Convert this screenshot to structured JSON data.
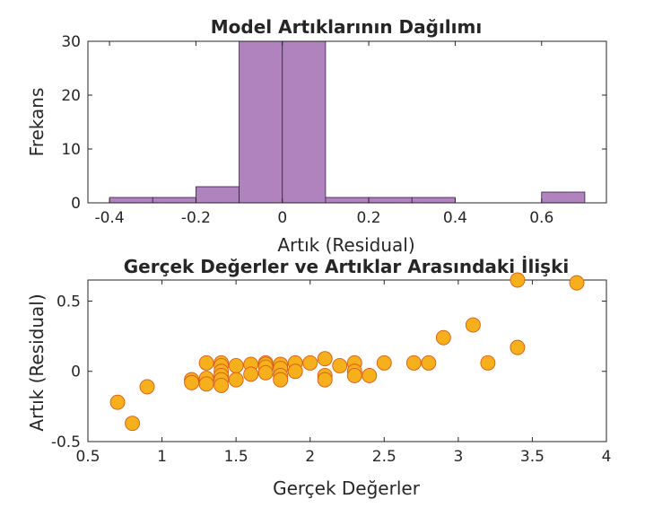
{
  "chart_data": [
    {
      "type": "bar",
      "title": "Model Artıklarının Dağılımı",
      "xlabel": "Artık (Residual)",
      "ylabel": "Frekans",
      "xlim": [
        -0.45,
        0.75
      ],
      "ylim": [
        0,
        30
      ],
      "xticks": [
        "-0.4",
        "-0.2",
        "0",
        "0.2",
        "0.4",
        "0.6"
      ],
      "xtick_values": [
        -0.4,
        -0.2,
        0,
        0.2,
        0.4,
        0.6
      ],
      "yticks": [
        "0",
        "10",
        "20",
        "30"
      ],
      "ytick_values": [
        0,
        10,
        20,
        30
      ],
      "bin_edges": [
        -0.4,
        -0.3,
        -0.2,
        -0.1,
        0.0,
        0.1,
        0.2,
        0.3,
        0.4,
        0.5,
        0.6,
        0.7
      ],
      "values": [
        1,
        1,
        3,
        30,
        30,
        1,
        1,
        1,
        0,
        0,
        2
      ],
      "color": "#b083bf",
      "edge_color": "#3a1f45"
    },
    {
      "type": "scatter",
      "title": "Gerçek Değerler ve Artıklar Arasındaki İlişki",
      "xlabel": "Gerçek Değerler",
      "ylabel": "Artık (Residual)",
      "xlim": [
        0.5,
        4
      ],
      "ylim": [
        -0.5,
        0.65
      ],
      "xticks": [
        "0.5",
        "1",
        "1.5",
        "2",
        "2.5",
        "3",
        "3.5",
        "4"
      ],
      "xtick_values": [
        0.5,
        1,
        1.5,
        2,
        2.5,
        3,
        3.5,
        4
      ],
      "yticks": [
        "-0.5",
        "0",
        "0.5"
      ],
      "ytick_values": [
        -0.5,
        0,
        0.5
      ],
      "marker_color": "#f5b01c",
      "marker_edge": "#d95a18",
      "points": [
        [
          0.7,
          -0.22
        ],
        [
          0.8,
          -0.37
        ],
        [
          0.9,
          -0.11
        ],
        [
          1.2,
          -0.06
        ],
        [
          1.2,
          -0.08
        ],
        [
          1.3,
          0.06
        ],
        [
          1.3,
          -0.05
        ],
        [
          1.3,
          -0.09
        ],
        [
          1.4,
          0.06
        ],
        [
          1.4,
          0.04
        ],
        [
          1.4,
          0.0
        ],
        [
          1.4,
          -0.03
        ],
        [
          1.4,
          -0.06
        ],
        [
          1.4,
          -0.1
        ],
        [
          1.5,
          0.04
        ],
        [
          1.5,
          -0.06
        ],
        [
          1.6,
          0.05
        ],
        [
          1.6,
          -0.02
        ],
        [
          1.7,
          0.06
        ],
        [
          1.7,
          0.05
        ],
        [
          1.7,
          0.03
        ],
        [
          1.7,
          -0.01
        ],
        [
          1.8,
          0.05
        ],
        [
          1.8,
          0.02
        ],
        [
          1.8,
          -0.03
        ],
        [
          1.8,
          -0.06
        ],
        [
          1.9,
          0.06
        ],
        [
          1.9,
          0.0
        ],
        [
          2.0,
          0.06
        ],
        [
          2.1,
          0.09
        ],
        [
          2.1,
          -0.03
        ],
        [
          2.1,
          -0.06
        ],
        [
          2.2,
          0.04
        ],
        [
          2.3,
          0.06
        ],
        [
          2.3,
          0.0
        ],
        [
          2.3,
          -0.03
        ],
        [
          2.4,
          -0.03
        ],
        [
          2.5,
          0.06
        ],
        [
          2.7,
          0.06
        ],
        [
          2.8,
          0.06
        ],
        [
          2.9,
          0.24
        ],
        [
          3.1,
          0.33
        ],
        [
          3.2,
          0.06
        ],
        [
          3.4,
          0.65
        ],
        [
          3.4,
          0.17
        ],
        [
          3.8,
          0.63
        ]
      ]
    }
  ]
}
